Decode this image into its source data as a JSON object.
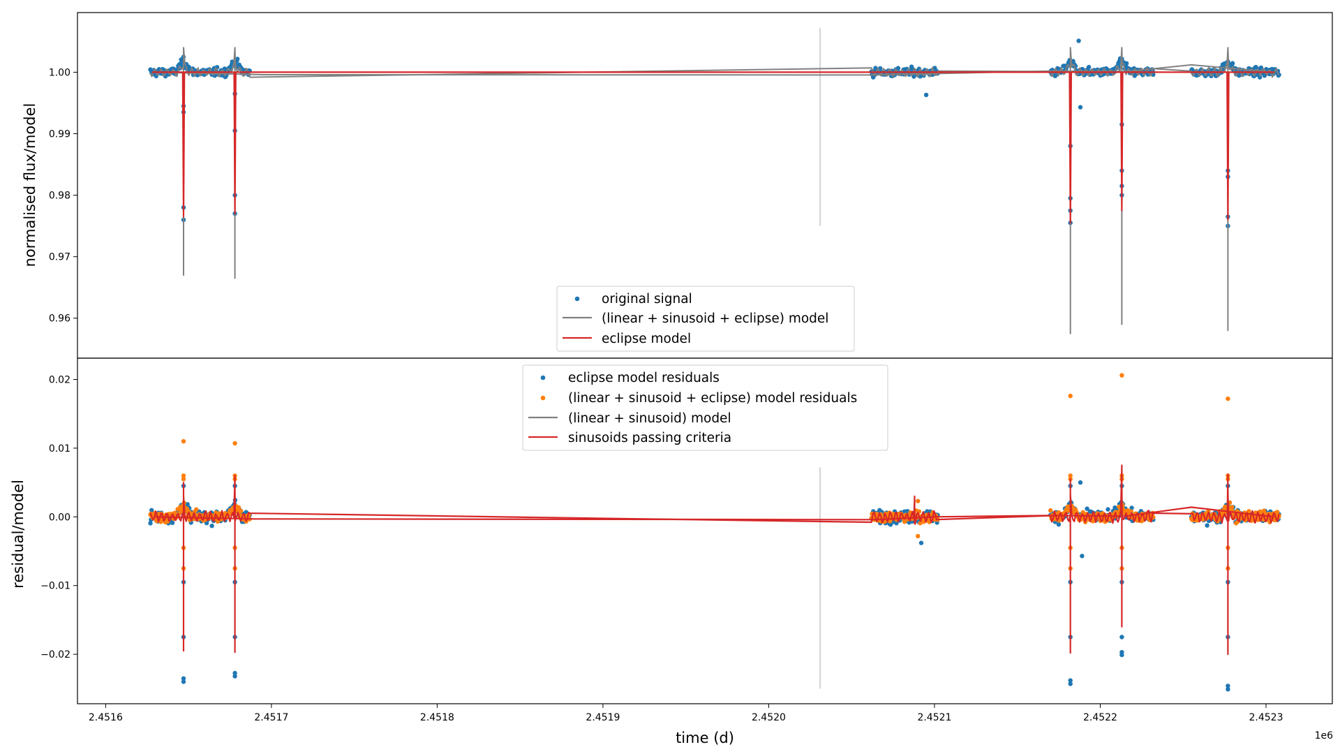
{
  "colors": {
    "blue": "#1f77b4",
    "orange": "#ff7f0e",
    "red": "#d62728",
    "gray": "#808080",
    "vline": "#d3d3d3"
  },
  "chart_data": [
    {
      "type": "scatter+line",
      "panel": "top",
      "ylabel": "normalised flux/model",
      "xlabel": "",
      "xlim": [
        2451583,
        2452340
      ],
      "ylim": [
        0.9535,
        1.0097
      ],
      "yticks": [
        0.96,
        0.97,
        0.98,
        0.99,
        1.0
      ],
      "ytick_labels": [
        "0.96",
        "0.97",
        "0.98",
        "0.99",
        "1.00"
      ],
      "vertical_line": {
        "x": 2452031,
        "y_range": [
          0.975,
          1.0072
        ]
      },
      "segments": [
        [
          2451627,
          2451687
        ],
        [
          2452062,
          2452102
        ],
        [
          2452170,
          2452232
        ],
        [
          2452255,
          2452308
        ]
      ],
      "eclipses": [
        {
          "x": 2451647,
          "depth_points": [
            0.976,
            0.978,
            0.9935,
            0.9945
          ],
          "gray_min": 0.967,
          "red_min": 0.9765
        },
        {
          "x": 2451678,
          "depth_points": [
            0.977,
            0.98,
            0.9905,
            0.9965
          ],
          "gray_min": 0.9665,
          "red_min": 0.977
        },
        {
          "x": 2452182,
          "depth_points": [
            0.9755,
            0.9795,
            0.9775,
            0.988
          ],
          "gray_min": 0.9575,
          "red_min": 0.9755
        },
        {
          "x": 2452213,
          "depth_points": [
            0.98,
            0.9815,
            0.984,
            0.9915
          ],
          "gray_min": 0.959,
          "red_min": 0.9775
        },
        {
          "x": 2452277,
          "depth_points": [
            0.975,
            0.9765,
            0.983,
            0.984
          ],
          "gray_min": 0.958,
          "red_min": 0.976
        }
      ],
      "outliers": [
        {
          "x": 2452095,
          "y": 0.9963
        },
        {
          "x": 2452188,
          "y": 0.9943
        },
        {
          "x": 2452187,
          "y": 1.0051
        }
      ],
      "gray_trend": [
        [
          2451630,
          1.0
        ],
        [
          2451695,
          0.9996
        ],
        [
          2452063,
          0.99955
        ],
        [
          2452170,
          1.0002
        ],
        [
          2452215,
          1.0001
        ],
        [
          2452255,
          1.0012
        ],
        [
          2452305,
          1.0
        ]
      ],
      "legend": {
        "location": "lower center",
        "entries": [
          {
            "label": "original signal",
            "kind": "marker",
            "color": "#1f77b4"
          },
          {
            "label": "(linear + sinusoid + eclipse) model",
            "kind": "line",
            "color": "#808080"
          },
          {
            "label": "eclipse model",
            "kind": "line",
            "color": "#d62728"
          }
        ]
      }
    },
    {
      "type": "scatter+line",
      "panel": "bottom",
      "ylabel": "residual/model",
      "xlabel": "time (d)",
      "xlim": [
        2451583,
        2452340
      ],
      "ylim": [
        -0.0272,
        0.0231
      ],
      "yticks": [
        -0.02,
        -0.01,
        0.0,
        0.01,
        0.02
      ],
      "ytick_labels": [
        "−0.02",
        "−0.01",
        "0.00",
        "0.01",
        "0.02"
      ],
      "xticks": [
        2451600,
        2451700,
        2451800,
        2451900,
        2452000,
        2452100,
        2452200,
        2452300
      ],
      "xtick_labels": [
        "2.4516",
        "2.4517",
        "2.4518",
        "2.4519",
        "2.4520",
        "2.4521",
        "2.4522",
        "2.4523"
      ],
      "x_offset_label": "1e6",
      "vertical_line": {
        "x": 2452031,
        "y_range": [
          -0.025,
          0.0072
        ]
      },
      "spikes": [
        {
          "x": 2451647,
          "blue_min": -0.024,
          "orange_max": 0.011,
          "red_min": -0.0195,
          "red_max": 0.005
        },
        {
          "x": 2451678,
          "blue_min": -0.0232,
          "orange_max": 0.0107,
          "red_min": -0.0197,
          "red_max": 0.006
        },
        {
          "x": 2452182,
          "blue_min": -0.0243,
          "orange_max": 0.0176,
          "red_min": -0.0198,
          "red_max": 0.0055
        },
        {
          "x": 2452213,
          "blue_min": -0.0201,
          "orange_max": 0.0206,
          "red_min": -0.016,
          "red_max": 0.0075
        },
        {
          "x": 2452277,
          "blue_min": -0.0251,
          "orange_max": 0.0172,
          "red_min": -0.02,
          "red_max": 0.0062
        }
      ],
      "red_trend": [
        [
          2451630,
          0.0
        ],
        [
          2451690,
          -0.0003
        ],
        [
          2452065,
          -0.0004
        ],
        [
          2452100,
          0.0
        ],
        [
          2452170,
          0.0002
        ],
        [
          2452215,
          0.0001
        ],
        [
          2452255,
          0.0014
        ],
        [
          2452305,
          0.0
        ]
      ],
      "extra_points": [
        {
          "x": 2452092,
          "y": -0.0038,
          "color": "blue"
        },
        {
          "x": 2452189,
          "y": -0.0057,
          "color": "blue"
        },
        {
          "x": 2452188,
          "y": 0.005,
          "color": "blue"
        },
        {
          "x": 2452090,
          "y": -0.0028,
          "color": "orange"
        },
        {
          "x": 2452090,
          "y": 0.0023,
          "color": "orange"
        }
      ],
      "legend": {
        "location": "upper center",
        "entries": [
          {
            "label": "eclipse model residuals",
            "kind": "marker",
            "color": "#1f77b4"
          },
          {
            "label": "(linear + sinusoid + eclipse) model residuals",
            "kind": "marker",
            "color": "#ff7f0e"
          },
          {
            "label": "(linear + sinusoid) model",
            "kind": "line",
            "color": "#808080"
          },
          {
            "label": "sinusoids passing criteria",
            "kind": "line",
            "color": "#d62728"
          }
        ]
      }
    }
  ]
}
